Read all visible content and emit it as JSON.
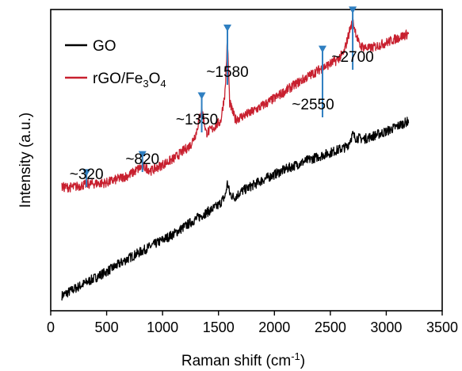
{
  "chart_data": {
    "type": "line",
    "xlabel": "Raman shift (cm",
    "xlabel_sup": "-1",
    "xlabel_tail": ")",
    "ylabel": "Intensity (a.u.)",
    "xlim": [
      0,
      3500
    ],
    "xticks": [
      0,
      500,
      1000,
      1500,
      2000,
      2500,
      3000,
      3500
    ],
    "ylim": [
      0,
      10
    ],
    "yticks_shown": false,
    "grid": false,
    "legend_position": "top-left",
    "series": [
      {
        "name": "GO",
        "color": "#000000",
        "x": [
          100,
          300,
          500,
          700,
          900,
          1100,
          1300,
          1500,
          1560,
          1580,
          1600,
          1640,
          1700,
          1900,
          2100,
          2300,
          2500,
          2650,
          2700,
          2720,
          2800,
          3000,
          3200
        ],
        "y": [
          0.5,
          0.9,
          1.3,
          1.75,
          2.15,
          2.55,
          3.05,
          3.5,
          3.8,
          4.25,
          3.9,
          3.75,
          3.95,
          4.35,
          4.7,
          5.0,
          5.25,
          5.45,
          5.85,
          5.75,
          5.7,
          5.95,
          6.3
        ]
      },
      {
        "name": "rGO/Fe3O4",
        "name_main": "rGO/Fe",
        "name_sub1": "3",
        "name_mid": "O",
        "name_sub2": "4",
        "color": "#c8202f",
        "x": [
          100,
          200,
          320,
          500,
          700,
          820,
          900,
          1100,
          1250,
          1300,
          1350,
          1390,
          1450,
          1520,
          1560,
          1580,
          1600,
          1650,
          1800,
          2000,
          2200,
          2400,
          2550,
          2620,
          2680,
          2700,
          2720,
          2760,
          2850,
          3000,
          3200
        ],
        "y": [
          4.1,
          4.1,
          4.2,
          4.25,
          4.5,
          4.8,
          4.65,
          5.05,
          5.5,
          5.9,
          6.75,
          5.9,
          6.05,
          6.3,
          7.3,
          9.0,
          6.9,
          6.35,
          6.6,
          7.05,
          7.55,
          8.0,
          8.3,
          8.55,
          9.4,
          9.6,
          9.35,
          8.8,
          8.7,
          8.9,
          9.2
        ]
      }
    ],
    "annotations": [
      {
        "label": "~320",
        "x": 320,
        "arrow_color": "#2f7fc1"
      },
      {
        "label": "~820",
        "x": 820,
        "arrow_color": "#2f7fc1"
      },
      {
        "label": "~1350",
        "x": 1350,
        "arrow_color": "#2f7fc1"
      },
      {
        "label": "~1580",
        "x": 1580,
        "arrow_color": "#2f7fc1"
      },
      {
        "label": "~2550",
        "x": 2550,
        "arrow_color": "#2f7fc1"
      },
      {
        "label": "~2700",
        "x": 2700,
        "arrow_color": "#2f7fc1"
      }
    ]
  }
}
